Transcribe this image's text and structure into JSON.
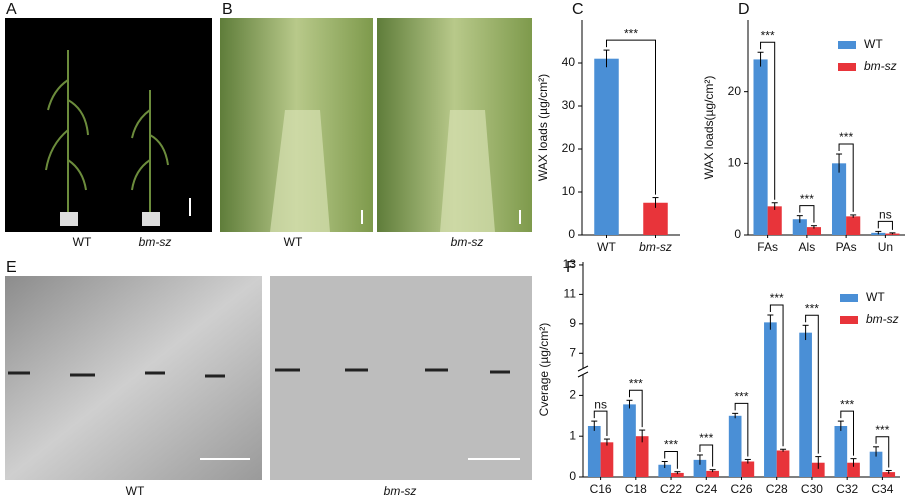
{
  "panels": [
    {
      "label": "A",
      "captions": [
        "WT",
        "bm-sz"
      ]
    },
    {
      "label": "B",
      "captions": [
        "WT",
        "bm-sz"
      ]
    },
    {
      "label": "E",
      "captions": [
        "WT",
        "bm-sz"
      ]
    }
  ],
  "chart_data": [
    {
      "type": "bar",
      "panel": "C",
      "ylabel": "WAX loads (µg/cm²)",
      "categories": [
        "WT",
        "bm-sz"
      ],
      "values": [
        41,
        7.5
      ],
      "errors": [
        2,
        1.2
      ],
      "colors": [
        "#4a8fd6",
        "#e8343a"
      ],
      "annotations": [
        "***"
      ],
      "ylim": [
        0,
        50
      ],
      "yticks": [
        0,
        10,
        20,
        30,
        40
      ]
    },
    {
      "type": "bar",
      "panel": "D",
      "ylabel": "WAX loads(µg/cm²)",
      "categories": [
        "FAs",
        "Als",
        "PAs",
        "Un"
      ],
      "series": [
        {
          "name": "WT",
          "color": "#4a8fd6",
          "values": [
            24.5,
            2.2,
            10,
            0.3
          ],
          "errors": [
            1,
            0.5,
            1.3,
            0.2
          ]
        },
        {
          "name": "bm-sz",
          "color": "#e8343a",
          "values": [
            4,
            1.1,
            2.6,
            0.2
          ],
          "errors": [
            0.5,
            0.2,
            0.2,
            0.1
          ]
        }
      ],
      "annotations": [
        "***",
        "***",
        "***",
        "ns"
      ],
      "ylim": [
        0,
        30
      ],
      "yticks": [
        0,
        10,
        20
      ],
      "legend": "upper right"
    },
    {
      "type": "bar",
      "panel": "F",
      "ylabel": "Cverage (µg/cm²)",
      "categories": [
        "C16",
        "C18",
        "C22",
        "C24",
        "C26",
        "C28",
        "C30",
        "C32",
        "C34"
      ],
      "series": [
        {
          "name": "WT",
          "color": "#4a8fd6",
          "values": [
            1.25,
            1.78,
            0.3,
            0.42,
            1.5,
            9.1,
            8.4,
            1.25,
            0.62
          ],
          "errors": [
            0.12,
            0.1,
            0.08,
            0.12,
            0.06,
            0.5,
            0.5,
            0.12,
            0.12
          ]
        },
        {
          "name": "bm-sz",
          "color": "#e8343a",
          "values": [
            0.85,
            1.0,
            0.1,
            0.15,
            0.38,
            0.65,
            0.35,
            0.35,
            0.12
          ],
          "errors": [
            0.08,
            0.15,
            0.03,
            0.03,
            0.05,
            0.03,
            0.15,
            0.1,
            0.04
          ]
        }
      ],
      "annotations": [
        "ns",
        "***",
        "***",
        "***",
        "***",
        "***",
        "***",
        "***",
        "***"
      ],
      "ylim": [
        0,
        13.2
      ],
      "ybreak": [
        2.5,
        6
      ],
      "yticks": [
        0,
        1,
        2,
        7,
        9,
        11,
        13
      ],
      "legend": "upper right"
    }
  ]
}
